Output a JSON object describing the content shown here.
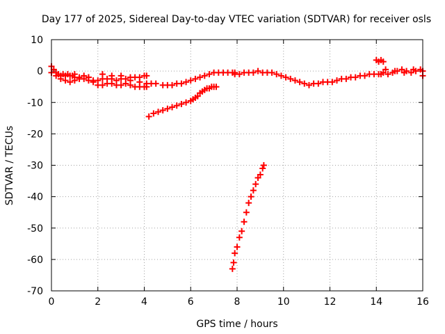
{
  "chart_data": {
    "type": "scatter",
    "title": "Day 177 of 2025, Sidereal Day-to-day VTEC variation (SDTVAR) for receiver osls",
    "xlabel": "GPS time / hours",
    "ylabel": "SDTVAR / TECUs",
    "xlim": [
      0,
      16
    ],
    "ylim": [
      -70,
      10
    ],
    "xticks": [
      0,
      2,
      4,
      6,
      8,
      10,
      12,
      14,
      16
    ],
    "yticks": [
      10,
      0,
      -10,
      -20,
      -30,
      -40,
      -50,
      -60,
      -70
    ],
    "grid": true,
    "color": "#ff0000",
    "marker": "plus",
    "series": [
      {
        "x": [
          0.0,
          0.1,
          0.2,
          0.3,
          0.4,
          0.5,
          0.6,
          0.7,
          0.8,
          0.9,
          1.0,
          1.2,
          1.4,
          1.6,
          1.8,
          2.0,
          2.2,
          2.4,
          2.6,
          2.8,
          3.0,
          3.2,
          3.4,
          3.6,
          3.8,
          4.0,
          4.1
        ],
        "y": [
          1.5,
          0.5,
          -0.5,
          -1.0,
          -1.5,
          -1.0,
          -1.5,
          -1.0,
          -1.5,
          -1.5,
          -2.0,
          -2.5,
          -2.5,
          -3.0,
          -3.0,
          -3.0,
          -2.5,
          -2.5,
          -2.5,
          -3.0,
          -2.5,
          -2.5,
          -2.0,
          -2.0,
          -2.0,
          -1.5,
          -1.5
        ]
      },
      {
        "x": [
          0.0,
          0.2,
          0.4,
          0.6,
          0.8,
          1.0,
          1.2,
          1.4,
          1.6,
          1.8,
          2.0,
          2.2,
          2.4,
          2.6,
          2.8,
          3.0,
          3.2,
          3.4,
          3.6,
          3.8,
          4.0,
          4.1
        ],
        "y": [
          -0.5,
          -1.5,
          -2.5,
          -3.0,
          -3.5,
          -3.0,
          -2.0,
          -1.5,
          -2.0,
          -3.5,
          -4.5,
          -4.5,
          -4.0,
          -4.0,
          -4.5,
          -4.5,
          -4.0,
          -4.5,
          -5.0,
          -5.0,
          -5.0,
          -5.0
        ]
      },
      {
        "x": [
          2.2,
          2.6,
          3.0,
          3.4,
          3.8,
          4.1,
          1.0,
          1.6
        ],
        "y": [
          -1.0,
          -1.5,
          -1.5,
          -3.0,
          -3.5,
          -4.0,
          -1.0,
          -2.0
        ]
      },
      {
        "x": [
          4.3,
          4.5,
          4.8,
          5.0,
          5.2,
          5.4,
          5.6,
          5.8,
          6.0,
          6.2,
          6.4,
          6.6,
          6.8,
          7.0,
          7.2,
          7.4,
          7.6,
          7.8,
          7.9
        ],
        "y": [
          -4.0,
          -4.0,
          -4.5,
          -4.5,
          -4.5,
          -4.0,
          -4.0,
          -3.5,
          -3.0,
          -2.5,
          -2.0,
          -1.5,
          -1.0,
          -0.5,
          -0.5,
          -0.5,
          -0.5,
          -0.5,
          -0.5
        ]
      },
      {
        "x": [
          4.2,
          4.4,
          4.6,
          4.8,
          5.0,
          5.2,
          5.4,
          5.6,
          5.8,
          6.0,
          6.1,
          6.2,
          6.3,
          6.4,
          6.5,
          6.6,
          6.7,
          6.8,
          6.9,
          7.0,
          7.1
        ],
        "y": [
          -14.5,
          -13.5,
          -13.0,
          -12.5,
          -12.0,
          -11.5,
          -11.0,
          -10.5,
          -10.0,
          -9.5,
          -9.0,
          -8.5,
          -8.0,
          -7.0,
          -6.5,
          -6.0,
          -5.5,
          -5.5,
          -5.0,
          -5.0,
          -5.0
        ]
      },
      {
        "x": [
          7.8,
          7.85,
          7.9,
          8.0,
          8.1,
          8.2,
          8.3,
          8.4,
          8.5,
          8.6,
          8.7,
          8.8,
          8.9,
          9.0,
          9.1,
          9.15
        ],
        "y": [
          -63,
          -61,
          -58,
          -56,
          -53,
          -51,
          -48,
          -45,
          -42,
          -40,
          -38,
          -36,
          -34,
          -33,
          -31,
          -30
        ]
      },
      {
        "x": [
          7.9,
          8.1,
          8.3,
          8.5,
          8.7,
          8.9,
          9.1,
          9.3,
          9.5,
          9.7,
          9.9,
          10.1,
          10.3,
          10.5,
          10.7,
          10.9,
          11.1,
          11.3,
          11.5,
          11.7,
          11.9,
          12.1,
          12.3,
          12.5,
          12.7,
          12.9,
          13.1,
          13.3,
          13.5,
          13.7,
          13.9,
          14.1,
          14.2
        ],
        "y": [
          -1.0,
          -1.0,
          -0.5,
          -0.5,
          -0.5,
          0.0,
          -0.5,
          -0.5,
          -0.5,
          -1.0,
          -1.5,
          -2.0,
          -2.5,
          -3.0,
          -3.5,
          -4.0,
          -4.5,
          -4.0,
          -4.0,
          -3.5,
          -3.5,
          -3.5,
          -3.0,
          -2.5,
          -2.5,
          -2.0,
          -2.0,
          -1.5,
          -1.5,
          -1.0,
          -1.0,
          -1.0,
          -1.0
        ]
      },
      {
        "x": [
          14.0,
          14.1,
          14.2,
          14.3
        ],
        "y": [
          3.5,
          3.0,
          3.5,
          3.0
        ]
      },
      {
        "x": [
          14.3,
          14.5,
          14.7,
          14.9,
          15.1,
          15.3,
          15.5,
          15.7,
          15.9,
          16.0,
          14.4,
          14.8,
          15.2,
          15.6,
          16.0
        ],
        "y": [
          -0.5,
          -1.0,
          -0.5,
          0.0,
          0.5,
          0.0,
          -0.5,
          0.0,
          0.5,
          0.0,
          0.5,
          0.0,
          -0.5,
          0.5,
          -1.5
        ]
      }
    ]
  }
}
